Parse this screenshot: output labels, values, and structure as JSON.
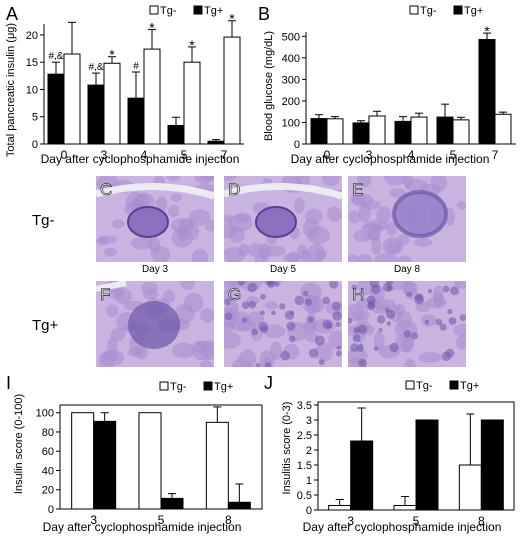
{
  "panels": [
    {
      "id": "A",
      "letter": "A",
      "type": "bar",
      "ylabel": "Total pancreatic insulin (μg)",
      "xlabel": "Day after cyclophosphamide injection",
      "yticks": [
        0,
        5,
        10,
        15,
        20
      ],
      "ylim": [
        0,
        22
      ],
      "categories": [
        "0",
        "3",
        "4",
        "5",
        "7"
      ],
      "legend": [
        {
          "name": "Tg-",
          "color": "#ffffff"
        },
        {
          "name": "Tg+",
          "color": "#000000"
        }
      ],
      "series": [
        {
          "name": "Tg+",
          "color": "#000000",
          "values": [
            12.8,
            10.8,
            8.4,
            3.4,
            0.5
          ],
          "errors": [
            2.2,
            2.2,
            4.8,
            1.5,
            0.3
          ]
        },
        {
          "name": "Tg-",
          "color": "#ffffff",
          "values": [
            16.5,
            14.8,
            17.4,
            15.0,
            19.6
          ],
          "errors": [
            5.8,
            1.2,
            3.6,
            2.8,
            3.0
          ]
        }
      ],
      "annotations": [
        {
          "cat": 0,
          "series": "Tg+",
          "text": "#,&"
        },
        {
          "cat": 1,
          "series": "Tg+",
          "text": "#,&"
        },
        {
          "cat": 2,
          "series": "Tg+",
          "text": "#"
        },
        {
          "cat": 1,
          "series": "Tg-",
          "text": "*"
        },
        {
          "cat": 2,
          "series": "Tg-",
          "text": "*"
        },
        {
          "cat": 3,
          "series": "Tg-",
          "text": "*"
        },
        {
          "cat": 4,
          "series": "Tg-",
          "text": "*"
        }
      ]
    },
    {
      "id": "B",
      "letter": "B",
      "type": "bar",
      "ylabel": "Blood glucose (mg/dL)",
      "xlabel": "Day after cyclophosphamide injection",
      "yticks": [
        0,
        100,
        200,
        300,
        400,
        500
      ],
      "ylim": [
        0,
        520
      ],
      "categories": [
        "0",
        "3",
        "4",
        "5",
        "7"
      ],
      "legend": [
        {
          "name": "Tg-",
          "color": "#ffffff"
        },
        {
          "name": "Tg+",
          "color": "#000000"
        }
      ],
      "series": [
        {
          "name": "Tg+",
          "color": "#000000",
          "values": [
            118,
            98,
            105,
            125,
            485
          ],
          "errors": [
            18,
            10,
            22,
            60,
            30
          ]
        },
        {
          "name": "Tg-",
          "color": "#ffffff",
          "values": [
            117,
            130,
            125,
            112,
            138
          ],
          "errors": [
            10,
            22,
            18,
            12,
            10
          ]
        }
      ],
      "annotations": [
        {
          "cat": 4,
          "series": "Tg+",
          "text": "*"
        }
      ]
    },
    {
      "id": "I",
      "letter": "I",
      "type": "bar",
      "ylabel": "Insulin score (0-100)",
      "xlabel": "Day after cyclophosphamide injection",
      "yticks": [
        0,
        20,
        40,
        60,
        80,
        100
      ],
      "ylim": [
        0,
        108
      ],
      "categories": [
        "3",
        "5",
        "8"
      ],
      "legend": [
        {
          "name": "Tg-",
          "color": "#ffffff"
        },
        {
          "name": "Tg+",
          "color": "#000000"
        }
      ],
      "series": [
        {
          "name": "Tg-",
          "color": "#ffffff",
          "values": [
            100,
            100,
            90
          ],
          "errors": [
            0,
            0,
            16
          ]
        },
        {
          "name": "Tg+",
          "color": "#000000",
          "values": [
            91,
            11,
            7
          ],
          "errors": [
            9,
            5,
            19
          ]
        }
      ],
      "annotations": []
    },
    {
      "id": "J",
      "letter": "J",
      "type": "bar",
      "ylabel": "Insulitis score (0-3)",
      "xlabel": "Day after cyclophosphamide injection",
      "yticks": [
        0,
        0.5,
        1,
        1.5,
        2,
        2.5,
        3,
        3.5
      ],
      "ylim": [
        0,
        3.6
      ],
      "categories": [
        "3",
        "5",
        "8"
      ],
      "legend": [
        {
          "name": "Tg-",
          "color": "#ffffff"
        },
        {
          "name": "Tg+",
          "color": "#000000"
        }
      ],
      "series": [
        {
          "name": "Tg-",
          "color": "#ffffff",
          "values": [
            0.15,
            0.15,
            1.5
          ],
          "errors": [
            0.2,
            0.3,
            1.7
          ]
        },
        {
          "name": "Tg+",
          "color": "#000000",
          "values": [
            2.3,
            3.0,
            3.0
          ],
          "errors": [
            1.1,
            0,
            0
          ]
        }
      ],
      "annotations": []
    }
  ],
  "histology": {
    "row_labels": [
      "Tg-",
      "Tg+"
    ],
    "panels": [
      {
        "letter": "C",
        "caption": "Day 3",
        "kind": "islet-clear"
      },
      {
        "letter": "D",
        "caption": "Day 5",
        "kind": "islet-clear"
      },
      {
        "letter": "E",
        "caption": "Day 8",
        "kind": "islet-mild"
      },
      {
        "letter": "F",
        "caption": "",
        "kind": "islet-infiltrated"
      },
      {
        "letter": "G",
        "caption": "",
        "kind": "dense-infiltrate"
      },
      {
        "letter": "H",
        "caption": "",
        "kind": "dense-infiltrate"
      }
    ],
    "colors": {
      "tissue": "#c9b3e0",
      "acini": "#a98ccf",
      "infiltrate": "#6e57a8",
      "lumen": "#ecebf2"
    }
  }
}
